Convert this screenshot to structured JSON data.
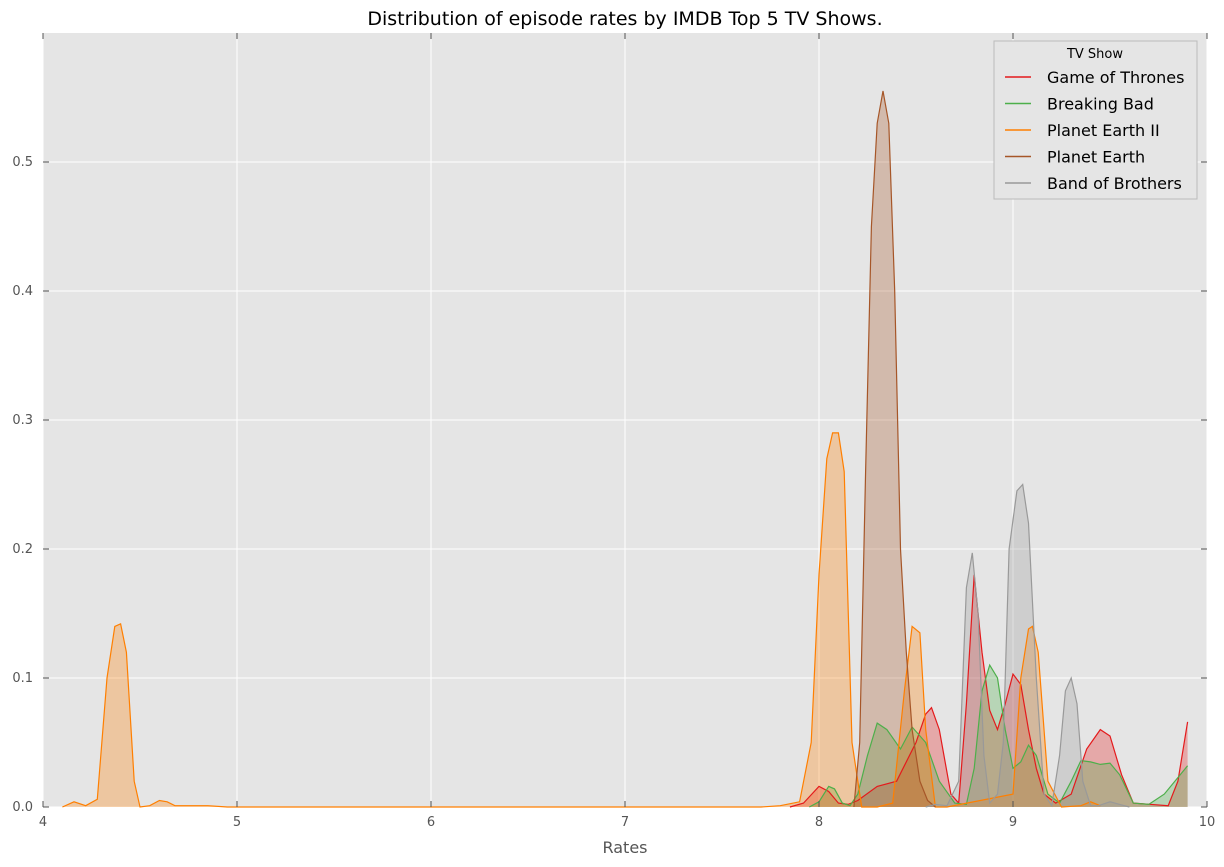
{
  "chart_data": {
    "type": "area",
    "title": "Distribution of episode rates by IMDB Top 5 TV Shows.",
    "xlabel": "Rates",
    "ylabel": "",
    "xlim": [
      4,
      10
    ],
    "ylim": [
      0,
      0.6
    ],
    "x_ticks": [
      4,
      5,
      6,
      7,
      8,
      9,
      10
    ],
    "x_tick_labels": [
      "4",
      "5",
      "6",
      "7",
      "8",
      "9",
      "10"
    ],
    "y_ticks": [
      0.0,
      0.1,
      0.2,
      0.3,
      0.4,
      0.5
    ],
    "y_tick_labels": [
      "0.0",
      "0.1",
      "0.2",
      "0.3",
      "0.4",
      "0.5"
    ],
    "grid": true,
    "legend": {
      "title": "TV Show",
      "placement": "top-right"
    },
    "series": [
      {
        "name": "Game of Thrones",
        "color": "#e41a1c",
        "x": [
          7.85,
          7.92,
          8.0,
          8.05,
          8.1,
          8.15,
          8.2,
          8.3,
          8.4,
          8.5,
          8.55,
          8.58,
          8.62,
          8.68,
          8.72,
          8.76,
          8.8,
          8.84,
          8.88,
          8.92,
          8.96,
          9.0,
          9.04,
          9.08,
          9.12,
          9.16,
          9.22,
          9.3,
          9.38,
          9.45,
          9.5,
          9.56,
          9.62,
          9.8,
          9.85,
          9.9
        ],
        "y": [
          0,
          0.003,
          0.016,
          0.012,
          0.003,
          0.002,
          0.005,
          0.016,
          0.02,
          0.05,
          0.072,
          0.077,
          0.06,
          0.01,
          0.003,
          0.08,
          0.18,
          0.12,
          0.075,
          0.06,
          0.08,
          0.103,
          0.095,
          0.06,
          0.03,
          0.01,
          0.003,
          0.01,
          0.045,
          0.06,
          0.055,
          0.025,
          0.003,
          0.001,
          0.02,
          0.066
        ]
      },
      {
        "name": "Breaking Bad",
        "color": "#4daf4a",
        "x": [
          7.95,
          8.0,
          8.05,
          8.08,
          8.12,
          8.16,
          8.2,
          8.25,
          8.3,
          8.35,
          8.42,
          8.48,
          8.55,
          8.62,
          8.7,
          8.76,
          8.8,
          8.84,
          8.88,
          8.92,
          8.96,
          9.0,
          9.04,
          9.08,
          9.12,
          9.18,
          9.24,
          9.3,
          9.35,
          9.4,
          9.45,
          9.5,
          9.55,
          9.62,
          9.7,
          9.78,
          9.9
        ],
        "y": [
          0,
          0.004,
          0.016,
          0.014,
          0.003,
          0.001,
          0.01,
          0.04,
          0.065,
          0.06,
          0.045,
          0.062,
          0.05,
          0.02,
          0.003,
          0.002,
          0.03,
          0.09,
          0.11,
          0.1,
          0.06,
          0.03,
          0.035,
          0.048,
          0.04,
          0.01,
          0.003,
          0.02,
          0.036,
          0.035,
          0.033,
          0.034,
          0.025,
          0.003,
          0.002,
          0.01,
          0.032
        ]
      },
      {
        "name": "Planet Earth II",
        "color": "#ff7f00",
        "x": [
          4.1,
          4.16,
          4.22,
          4.28,
          4.33,
          4.37,
          4.4,
          4.43,
          4.47,
          4.5,
          4.55,
          4.6,
          4.64,
          4.68,
          4.75,
          4.85,
          4.95,
          7.7,
          7.8,
          7.9,
          7.96,
          8.0,
          8.04,
          8.07,
          8.1,
          8.13,
          8.17,
          8.22,
          8.3,
          8.38,
          8.44,
          8.48,
          8.52,
          8.55,
          8.6,
          8.66,
          9.0,
          9.04,
          9.08,
          9.1,
          9.13,
          9.18,
          9.25,
          9.35,
          9.4,
          9.45
        ],
        "y": [
          0,
          0.004,
          0.001,
          0.006,
          0.1,
          0.14,
          0.142,
          0.12,
          0.02,
          0,
          0.001,
          0.005,
          0.004,
          0.001,
          0.001,
          0.001,
          0,
          0,
          0.001,
          0.004,
          0.05,
          0.18,
          0.27,
          0.29,
          0.29,
          0.26,
          0.05,
          0,
          0,
          0.003,
          0.09,
          0.14,
          0.135,
          0.06,
          0,
          0,
          0.01,
          0.1,
          0.138,
          0.14,
          0.12,
          0.02,
          0,
          0.001,
          0.004,
          0.001
        ]
      },
      {
        "name": "Planet Earth",
        "color": "#a65628",
        "x": [
          8.18,
          8.21,
          8.24,
          8.27,
          8.3,
          8.33,
          8.36,
          8.39,
          8.42,
          8.45,
          8.48,
          8.52,
          8.56,
          8.6
        ],
        "y": [
          0,
          0.05,
          0.26,
          0.45,
          0.53,
          0.555,
          0.53,
          0.4,
          0.2,
          0.12,
          0.06,
          0.02,
          0.005,
          0
        ]
      },
      {
        "name": "Band of Brothers",
        "color": "#999999",
        "x": [
          8.55,
          8.6,
          8.66,
          8.72,
          8.76,
          8.79,
          8.82,
          8.85,
          8.88,
          8.92,
          8.95,
          8.98,
          9.02,
          9.05,
          9.08,
          9.12,
          9.16,
          9.2,
          9.24,
          9.27,
          9.3,
          9.33,
          9.36,
          9.4,
          9.44,
          9.5,
          9.55,
          9.6
        ],
        "y": [
          0,
          0.002,
          0.001,
          0.02,
          0.17,
          0.197,
          0.15,
          0.04,
          0.003,
          0.01,
          0.05,
          0.2,
          0.245,
          0.25,
          0.22,
          0.1,
          0.01,
          0.001,
          0.04,
          0.09,
          0.1,
          0.08,
          0.02,
          0.001,
          0.001,
          0.004,
          0.002,
          0
        ]
      }
    ]
  }
}
